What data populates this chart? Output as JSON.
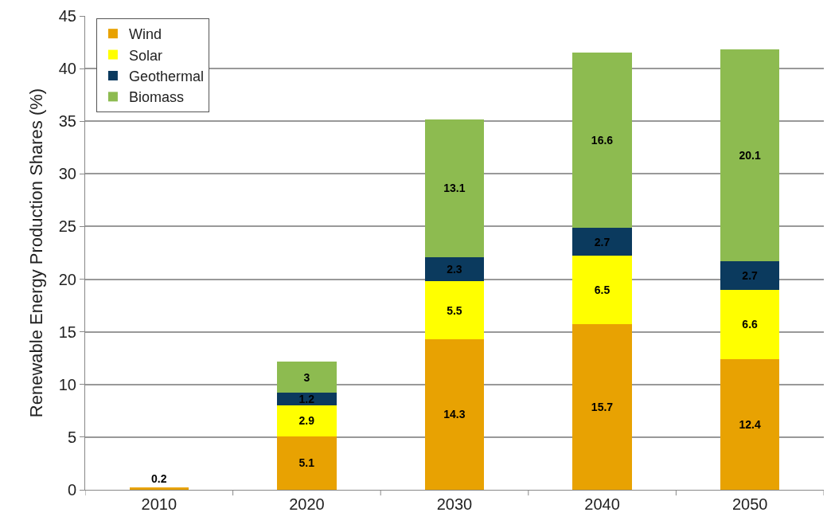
{
  "chart_data": {
    "type": "bar",
    "stacked": true,
    "ylabel": "Renewable Energy Production Shares (%)",
    "categories": [
      "2010",
      "2020",
      "2030",
      "2040",
      "2050"
    ],
    "series": [
      {
        "name": "Wind",
        "color": "#e8a202",
        "values": [
          0.2,
          5.1,
          14.3,
          15.7,
          12.4
        ]
      },
      {
        "name": "Solar",
        "color": "#ffff00",
        "values": [
          null,
          2.9,
          5.5,
          6.5,
          6.6
        ]
      },
      {
        "name": "Geothermal",
        "color": "#0b3a5e",
        "values": [
          null,
          1.2,
          2.3,
          2.7,
          2.7
        ]
      },
      {
        "name": "Biomass",
        "color": "#8dbb50",
        "values": [
          null,
          3,
          13.1,
          16.6,
          20.1
        ]
      }
    ],
    "ylim": [
      0,
      45
    ],
    "yticks": [
      0,
      5,
      10,
      15,
      20,
      25,
      30,
      35,
      40,
      45
    ],
    "grid": "y",
    "legend": "top left",
    "data_labels": true
  }
}
